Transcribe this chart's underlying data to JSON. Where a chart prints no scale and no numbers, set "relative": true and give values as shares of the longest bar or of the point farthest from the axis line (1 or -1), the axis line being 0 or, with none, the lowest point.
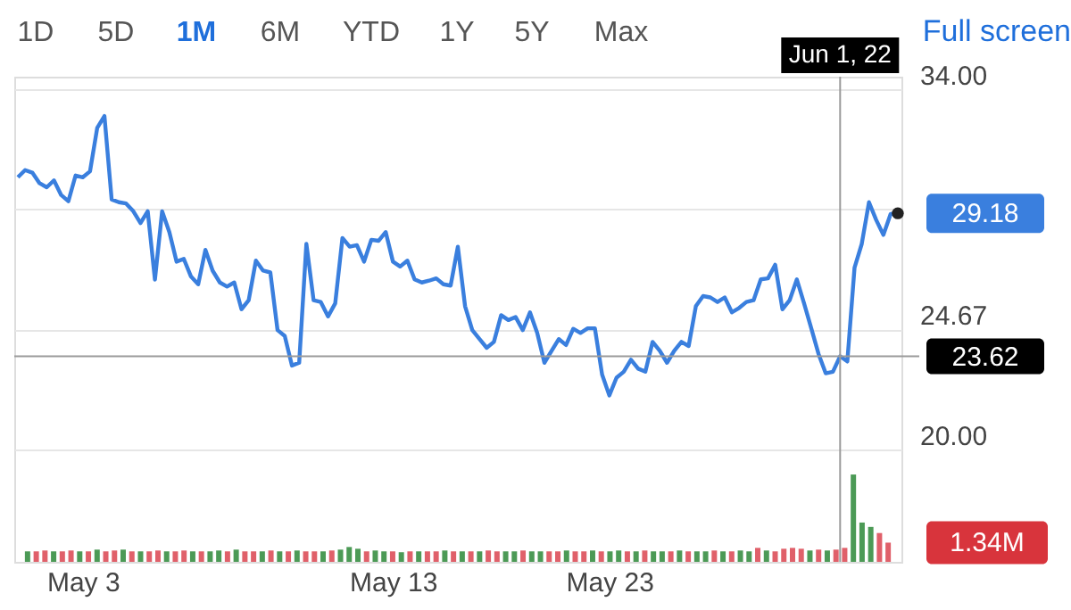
{
  "chart_data": [
    {
      "type": "line",
      "grid": "y",
      "annotations": [
        "1D",
        "5D",
        "1M",
        "6M",
        "YTD",
        "1Y",
        "5Y",
        "Max",
        "Full screen",
        "29.18"
      ],
      "categories": [
        null,
        null,
        null,
        null,
        null,
        null,
        null,
        null,
        null,
        "May 3",
        null,
        null,
        null,
        null,
        null,
        null,
        null,
        null,
        null,
        null,
        null,
        null,
        null,
        null,
        null,
        null,
        null,
        null,
        null,
        null,
        null,
        null,
        null,
        null,
        null,
        null,
        null,
        null,
        null,
        null,
        null,
        null,
        null,
        null,
        null,
        null,
        null,
        null,
        null,
        null,
        null,
        null,
        "May 13",
        null,
        null,
        null,
        null,
        null,
        null,
        null,
        null,
        null,
        null,
        null,
        null,
        null,
        null,
        null,
        null,
        null,
        null,
        null,
        null,
        null,
        null,
        null,
        null,
        null,
        null,
        null,
        null,
        null,
        "May 23",
        null,
        null,
        null,
        null,
        null,
        null,
        null,
        null,
        null,
        null,
        null,
        null,
        null,
        null,
        null,
        null,
        null,
        null,
        null,
        null,
        null,
        null,
        null,
        null,
        null,
        null,
        null,
        null,
        null,
        null,
        null,
        "Jun 1, 22",
        null,
        null,
        null,
        null,
        null,
        null,
        null,
        null
      ],
      "ylim": [
        15.63,
        34.49
      ],
      "yticks": [
        {
          "value": 20,
          "label": "20.00"
        },
        {
          "value": 24.67,
          "label": "24.67"
        },
        {
          "value": 29.33,
          "label": null
        },
        {
          "value": 34,
          "label": "34.00"
        }
      ],
      "ref_lines": [
        {
          "axis": "y",
          "value": 23.62,
          "label": "23.62",
          "color": "#9a9a9a"
        },
        {
          "axis": "x",
          "value": "Jun 1, 22",
          "color": "#9a9a9a"
        }
      ],
      "series": [
        {
          "color": "#3a7fde",
          "values": [
            30.58,
            30.86,
            30.76,
            30.35,
            30.19,
            30.46,
            29.89,
            29.65,
            30.65,
            30.58,
            30.81,
            32.5,
            32.96,
            29.72,
            29.61,
            29.56,
            29.26,
            28.8,
            29.26,
            26.6,
            29.26,
            28.45,
            27.3,
            27.41,
            26.72,
            26.42,
            27.76,
            26.95,
            26.49,
            26.33,
            26.49,
            25.45,
            25.8,
            27.34,
            26.95,
            26.88,
            24.64,
            24.41,
            23.26,
            23.37,
            27.99,
            25.8,
            25.73,
            25.17,
            25.68,
            28.22,
            27.88,
            27.94,
            27.3,
            28.15,
            28.11,
            28.45,
            27.3,
            27.11,
            27.34,
            26.61,
            26.49,
            26.56,
            26.65,
            26.42,
            26.37,
            27.88,
            25.57,
            24.64,
            24.29,
            23.95,
            24.18,
            25.22,
            25.03,
            25.15,
            24.64,
            25.33,
            24.53,
            23.37,
            23.83,
            24.29,
            24.06,
            24.69,
            24.53,
            24.71,
            24.71,
            22.91,
            22.1,
            22.79,
            23.02,
            23.49,
            23.14,
            23.02,
            24.18,
            23.83,
            23.37,
            23.83,
            24.18,
            24.02,
            25.57,
            25.96,
            25.91,
            25.73,
            25.91,
            25.33,
            25.5,
            25.73,
            25.8,
            26.61,
            26.65,
            27.18,
            25.45,
            25.8,
            26.61,
            25.68,
            24.71,
            23.72,
            22.96,
            23.02,
            23.62,
            23.42,
            27.07,
            27.99,
            29.61,
            28.92,
            28.34,
            29.15,
            29.18
          ]
        }
      ]
    },
    {
      "type": "bar",
      "relative": true,
      "annotations": [
        "1.34M"
      ],
      "categories": [
        null,
        null,
        null,
        null,
        null,
        null,
        null,
        null,
        null,
        null,
        null,
        null,
        null,
        null,
        null,
        null,
        null,
        null,
        null,
        null,
        null,
        null,
        null,
        null,
        null,
        null,
        null,
        null,
        null,
        null,
        null,
        null,
        null,
        null,
        null,
        null,
        null,
        null,
        null,
        null,
        null,
        null,
        null,
        null,
        null,
        null,
        null,
        null,
        null,
        null,
        null,
        null,
        null,
        null,
        null,
        null,
        null,
        null,
        null,
        null,
        null,
        null,
        null,
        null,
        null,
        null,
        null,
        null,
        null,
        null,
        null,
        null,
        null,
        null,
        null,
        null,
        null,
        null,
        null,
        null,
        null,
        null,
        null,
        null,
        null,
        null,
        null,
        null,
        null,
        null,
        null,
        null,
        null,
        null,
        null,
        null,
        null,
        null,
        null,
        null
      ],
      "values": [
        0.12,
        0.12,
        0.13,
        0.12,
        0.12,
        0.13,
        0.12,
        0.12,
        0.14,
        0.12,
        0.13,
        0.14,
        0.12,
        0.12,
        0.12,
        0.13,
        0.12,
        0.12,
        0.13,
        0.12,
        0.12,
        0.12,
        0.13,
        0.12,
        0.14,
        0.12,
        0.12,
        0.12,
        0.13,
        0.12,
        0.12,
        0.13,
        0.12,
        0.12,
        0.12,
        0.13,
        0.14,
        0.17,
        0.15,
        0.12,
        0.13,
        0.12,
        0.12,
        0.11,
        0.12,
        0.12,
        0.12,
        0.12,
        0.13,
        0.12,
        0.12,
        0.12,
        0.12,
        0.13,
        0.12,
        0.12,
        0.12,
        0.13,
        0.12,
        0.12,
        0.12,
        0.12,
        0.13,
        0.12,
        0.12,
        0.13,
        0.12,
        0.12,
        0.13,
        0.12,
        0.12,
        0.13,
        0.12,
        0.12,
        0.12,
        0.13,
        0.12,
        0.12,
        0.12,
        0.13,
        0.12,
        0.12,
        0.13,
        0.12,
        0.16,
        0.13,
        0.12,
        0.15,
        0.16,
        0.15,
        0.13,
        0.14,
        0.13,
        0.14,
        0.16,
        1.0,
        0.45,
        0.4,
        0.33,
        0.22
      ],
      "colors": [
        "#4c9a56",
        "#e0606a",
        "#e0606a",
        "#4c9a56",
        "#e0606a",
        "#e0606a",
        "#4c9a56",
        "#e0606a",
        "#4c9a56",
        "#e0606a",
        "#e0606a",
        "#4c9a56",
        "#e0606a",
        "#4c9a56",
        "#e0606a",
        "#e0606a",
        "#4c9a56",
        "#e0606a",
        "#e0606a",
        "#4c9a56",
        "#e0606a",
        "#4c9a56",
        "#4c9a56",
        "#e0606a",
        "#4c9a56",
        "#e0606a",
        "#e0606a",
        "#4c9a56",
        "#e0606a",
        "#4c9a56",
        "#e0606a",
        "#4c9a56",
        "#e0606a",
        "#e0606a",
        "#4c9a56",
        "#e0606a",
        "#4c9a56",
        "#4c9a56",
        "#4c9a56",
        "#e0606a",
        "#4c9a56",
        "#4c9a56",
        "#e0606a",
        "#4c9a56",
        "#e0606a",
        "#4c9a56",
        "#e0606a",
        "#e0606a",
        "#4c9a56",
        "#e0606a",
        "#4c9a56",
        "#e0606a",
        "#4c9a56",
        "#e0606a",
        "#e0606a",
        "#4c9a56",
        "#4c9a56",
        "#e0606a",
        "#4c9a56",
        "#4c9a56",
        "#e0606a",
        "#e0606a",
        "#4c9a56",
        "#e0606a",
        "#e0606a",
        "#4c9a56",
        "#e0606a",
        "#4c9a56",
        "#4c9a56",
        "#e0606a",
        "#4c9a56",
        "#e0606a",
        "#4c9a56",
        "#4c9a56",
        "#e0606a",
        "#4c9a56",
        "#e0606a",
        "#4c9a56",
        "#4c9a56",
        "#e0606a",
        "#4c9a56",
        "#e0606a",
        "#4c9a56",
        "#4c9a56",
        "#e0606a",
        "#4c9a56",
        "#e0606a",
        "#e0606a",
        "#e0606a",
        "#e0606a",
        "#4c9a56",
        "#e0606a",
        "#4c9a56",
        "#e0606a",
        "#e0606a",
        "#4c9a56",
        "#4c9a56",
        "#4c9a56",
        "#e0606a",
        "#e0606a"
      ]
    }
  ]
}
